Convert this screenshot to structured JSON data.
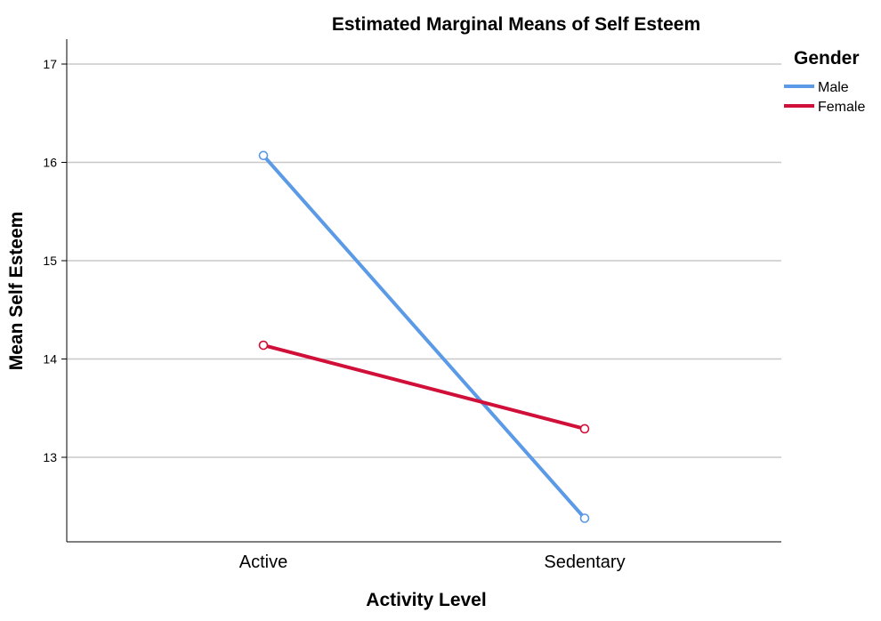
{
  "chart_data": {
    "type": "line",
    "title": "Estimated Marginal Means of Self Esteem",
    "xlabel": "Activity Level",
    "ylabel": "Mean Self Esteem",
    "categories": [
      "Active",
      "Sedentary"
    ],
    "yticks": [
      13,
      14,
      15,
      16,
      17
    ],
    "ylim": [
      12.15,
      17.25
    ],
    "grid": true,
    "legend": {
      "title": "Gender",
      "placement": "top-right"
    },
    "series": [
      {
        "name": "Male",
        "color": "#5b9ae6",
        "values": [
          16.07,
          12.38
        ]
      },
      {
        "name": "Female",
        "color": "#d1103a",
        "values": [
          14.14,
          13.29
        ]
      }
    ]
  }
}
